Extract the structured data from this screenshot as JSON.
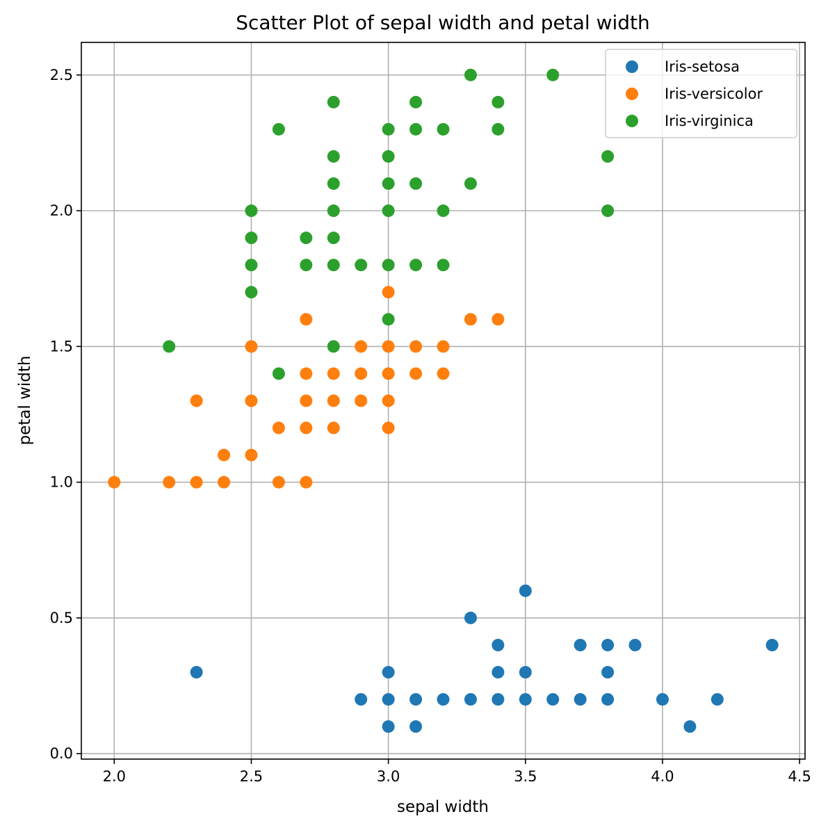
{
  "chart_data": {
    "type": "scatter",
    "title": "Scatter Plot of sepal width and petal width",
    "xlabel": "sepal width",
    "ylabel": "petal width",
    "xlim": [
      1.88,
      4.52
    ],
    "ylim": [
      -0.02,
      2.62
    ],
    "xticks": [
      2.0,
      2.5,
      3.0,
      3.5,
      4.0,
      4.5
    ],
    "xtick_labels": [
      "2.0",
      "2.5",
      "3.0",
      "3.5",
      "4.0",
      "4.5"
    ],
    "yticks": [
      0.0,
      0.5,
      1.0,
      1.5,
      2.0,
      2.5
    ],
    "ytick_labels": [
      "0.0",
      "0.5",
      "1.0",
      "1.5",
      "2.0",
      "2.5"
    ],
    "grid": true,
    "legend_position": "top-right",
    "series": [
      {
        "name": "Iris-setosa",
        "color": "#1f77b4",
        "points": [
          [
            2.3,
            0.3
          ],
          [
            2.9,
            0.2
          ],
          [
            3.0,
            0.1
          ],
          [
            3.0,
            0.2
          ],
          [
            3.0,
            0.3
          ],
          [
            3.1,
            0.1
          ],
          [
            3.1,
            0.2
          ],
          [
            3.2,
            0.2
          ],
          [
            3.3,
            0.2
          ],
          [
            3.3,
            0.5
          ],
          [
            3.4,
            0.2
          ],
          [
            3.4,
            0.3
          ],
          [
            3.4,
            0.4
          ],
          [
            3.5,
            0.2
          ],
          [
            3.5,
            0.3
          ],
          [
            3.5,
            0.6
          ],
          [
            3.6,
            0.2
          ],
          [
            3.7,
            0.2
          ],
          [
            3.7,
            0.4
          ],
          [
            3.8,
            0.2
          ],
          [
            3.8,
            0.3
          ],
          [
            3.8,
            0.4
          ],
          [
            3.9,
            0.4
          ],
          [
            4.0,
            0.2
          ],
          [
            4.1,
            0.1
          ],
          [
            4.2,
            0.2
          ],
          [
            4.4,
            0.4
          ]
        ]
      },
      {
        "name": "Iris-versicolor",
        "color": "#ff7f0e",
        "points": [
          [
            2.0,
            1.0
          ],
          [
            2.2,
            1.0
          ],
          [
            2.3,
            1.0
          ],
          [
            2.3,
            1.3
          ],
          [
            2.4,
            1.0
          ],
          [
            2.4,
            1.1
          ],
          [
            2.5,
            1.1
          ],
          [
            2.5,
            1.3
          ],
          [
            2.5,
            1.5
          ],
          [
            2.6,
            1.0
          ],
          [
            2.6,
            1.2
          ],
          [
            2.7,
            1.0
          ],
          [
            2.7,
            1.2
          ],
          [
            2.7,
            1.3
          ],
          [
            2.7,
            1.4
          ],
          [
            2.7,
            1.6
          ],
          [
            2.8,
            1.2
          ],
          [
            2.8,
            1.3
          ],
          [
            2.8,
            1.4
          ],
          [
            2.9,
            1.3
          ],
          [
            2.9,
            1.4
          ],
          [
            2.9,
            1.5
          ],
          [
            3.0,
            1.2
          ],
          [
            3.0,
            1.3
          ],
          [
            3.0,
            1.4
          ],
          [
            3.0,
            1.5
          ],
          [
            3.0,
            1.7
          ],
          [
            3.1,
            1.4
          ],
          [
            3.1,
            1.5
          ],
          [
            3.2,
            1.4
          ],
          [
            3.2,
            1.5
          ],
          [
            3.3,
            1.6
          ],
          [
            3.4,
            1.6
          ]
        ]
      },
      {
        "name": "Iris-virginica",
        "color": "#2ca02c",
        "points": [
          [
            2.2,
            1.5
          ],
          [
            2.5,
            1.7
          ],
          [
            2.5,
            1.8
          ],
          [
            2.5,
            1.9
          ],
          [
            2.5,
            2.0
          ],
          [
            2.6,
            1.4
          ],
          [
            2.6,
            2.3
          ],
          [
            2.7,
            1.8
          ],
          [
            2.7,
            1.9
          ],
          [
            2.8,
            1.5
          ],
          [
            2.8,
            1.8
          ],
          [
            2.8,
            1.9
          ],
          [
            2.8,
            2.0
          ],
          [
            2.8,
            2.1
          ],
          [
            2.8,
            2.2
          ],
          [
            2.8,
            2.4
          ],
          [
            2.9,
            1.8
          ],
          [
            3.0,
            1.6
          ],
          [
            3.0,
            1.8
          ],
          [
            3.0,
            2.0
          ],
          [
            3.0,
            2.1
          ],
          [
            3.0,
            2.2
          ],
          [
            3.0,
            2.3
          ],
          [
            3.1,
            1.8
          ],
          [
            3.1,
            2.1
          ],
          [
            3.1,
            2.3
          ],
          [
            3.1,
            2.4
          ],
          [
            3.2,
            1.8
          ],
          [
            3.2,
            2.0
          ],
          [
            3.2,
            2.3
          ],
          [
            3.3,
            2.1
          ],
          [
            3.3,
            2.5
          ],
          [
            3.4,
            2.3
          ],
          [
            3.4,
            2.4
          ],
          [
            3.6,
            2.5
          ],
          [
            3.8,
            2.0
          ],
          [
            3.8,
            2.2
          ]
        ]
      }
    ]
  }
}
